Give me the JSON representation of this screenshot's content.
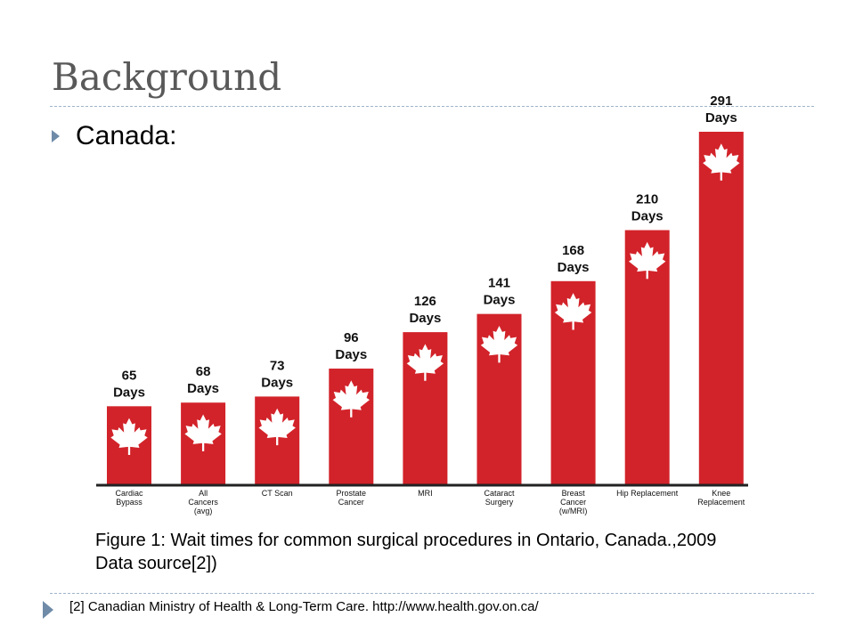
{
  "slide": {
    "title": "Background",
    "bullet": "Canada:",
    "caption_line1": "Figure 1: Wait times for common surgical procedures in Ontario, Canada.,2009",
    "caption_line2": "Data source[2])",
    "footnote": "[2] Canadian Ministry of Health & Long-Term Care. http://www.health.gov.on.ca/"
  },
  "colors": {
    "bar": "#d2232a",
    "leaf": "#ffffff",
    "axis": "#222222",
    "title": "#595959",
    "bullet": "#6f8ba8"
  },
  "chart_data": {
    "type": "bar",
    "categories": [
      [
        "Cardiac",
        "Bypass"
      ],
      [
        "All",
        "Cancers",
        "(avg)"
      ],
      [
        "CT Scan"
      ],
      [
        "Prostate",
        "Cancer"
      ],
      [
        "MRI"
      ],
      [
        "Cataract",
        "Surgery"
      ],
      [
        "Breast",
        "Cancer",
        "(w/MRI)"
      ],
      [
        "Hip Replacement"
      ],
      [
        "Knee",
        "Replacement"
      ]
    ],
    "values": [
      65,
      68,
      73,
      96,
      126,
      141,
      168,
      210,
      291
    ],
    "data_labels": [
      [
        "65",
        "Days"
      ],
      [
        "68",
        "Days"
      ],
      [
        "73",
        "Days"
      ],
      [
        "96",
        "Days"
      ],
      [
        "126",
        "Days"
      ],
      [
        "141",
        "Days"
      ],
      [
        "168",
        "Days"
      ],
      [
        "210",
        "Days"
      ],
      [
        "291",
        "Days"
      ]
    ],
    "ylim": [
      0,
      291
    ],
    "grid": false,
    "legend": "none",
    "bar_icon": "maple-leaf-icon"
  }
}
